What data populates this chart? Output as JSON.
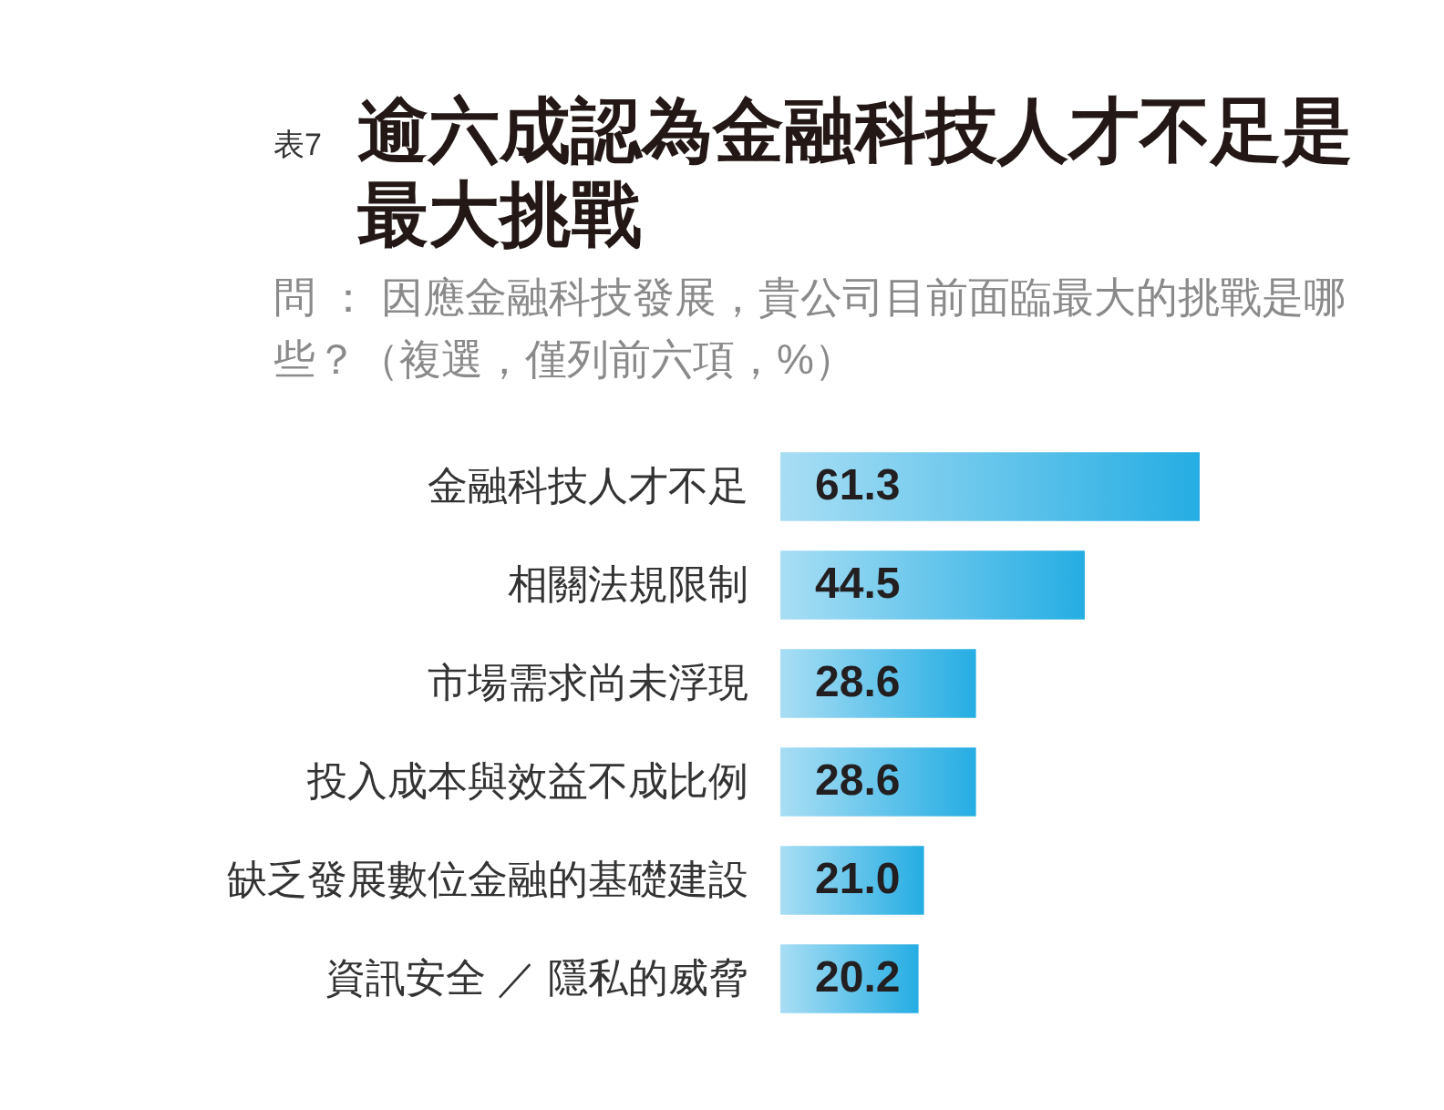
{
  "chart_data": {
    "type": "bar",
    "orientation": "horizontal",
    "title": "逾六成認為金融科技人才不足是最大挑戰",
    "subtitle": "問 ： 因應金融科技發展，貴公司目前面臨最大的挑戰是哪些？（複選，僅列前六項，%）",
    "annotations": [
      "表7"
    ],
    "categories": [
      "金融科技人才不足",
      "相關法規限制",
      "市場需求尚未浮現",
      "投入成本與效益不成比例",
      "缺乏發展數位金融的基礎建設",
      "資訊安全 ／ 隱私的威脅"
    ],
    "values": [
      61.3,
      44.5,
      28.6,
      28.6,
      21.0,
      20.2
    ],
    "value_labels": [
      "61.3",
      "44.5",
      "28.6",
      "28.6",
      "21.0",
      "20.2"
    ],
    "color": "#25ade3",
    "tick_labels": "y"
  }
}
